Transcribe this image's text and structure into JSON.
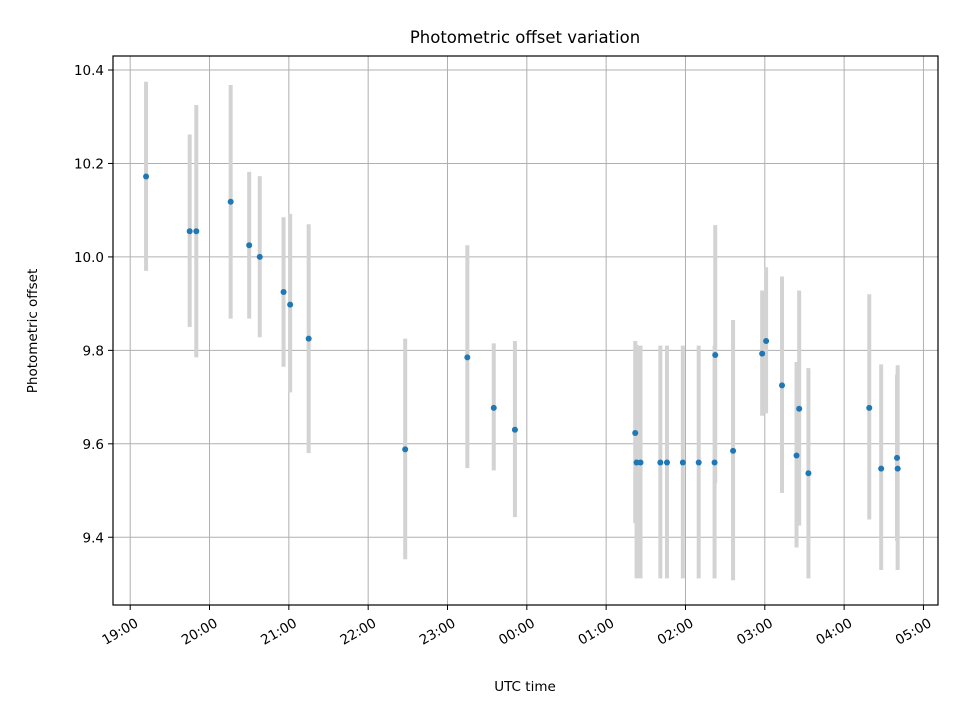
{
  "chart_data": {
    "type": "scatter",
    "title": "Photometric offset variation",
    "xlabel": "UTC time",
    "ylabel": "Photometric offset",
    "xlim": [
      "2000-01-01T18:47:00",
      "2000-01-02T05:11:00"
    ],
    "ylim": [
      9.255,
      10.43
    ],
    "grid": true,
    "marker_color": "#1f77b4",
    "errorbar_color": "#d3d3d3",
    "x_ticks": [
      {
        "t": "2000-01-01T19:00:00",
        "label": "19:00"
      },
      {
        "t": "2000-01-01T20:00:00",
        "label": "20:00"
      },
      {
        "t": "2000-01-01T21:00:00",
        "label": "21:00"
      },
      {
        "t": "2000-01-01T22:00:00",
        "label": "22:00"
      },
      {
        "t": "2000-01-01T23:00:00",
        "label": "23:00"
      },
      {
        "t": "2000-01-02T00:00:00",
        "label": "00:00"
      },
      {
        "t": "2000-01-02T01:00:00",
        "label": "01:00"
      },
      {
        "t": "2000-01-02T02:00:00",
        "label": "02:00"
      },
      {
        "t": "2000-01-02T03:00:00",
        "label": "03:00"
      },
      {
        "t": "2000-01-02T04:00:00",
        "label": "04:00"
      },
      {
        "t": "2000-01-02T05:00:00",
        "label": "05:00"
      }
    ],
    "y_ticks": [
      {
        "v": 9.4,
        "label": "9.4"
      },
      {
        "v": 9.6,
        "label": "9.6"
      },
      {
        "v": 9.8,
        "label": "9.8"
      },
      {
        "v": 10.0,
        "label": "10.0"
      },
      {
        "v": 10.2,
        "label": "10.2"
      },
      {
        "v": 10.4,
        "label": "10.4"
      }
    ],
    "points": [
      {
        "t": "2000-01-01T19:12:00",
        "y": 10.172,
        "lo": 9.97,
        "hi": 10.375
      },
      {
        "t": "2000-01-01T19:45:00",
        "y": 10.055,
        "lo": 9.85,
        "hi": 10.262
      },
      {
        "t": "2000-01-01T19:50:00",
        "y": 10.055,
        "lo": 9.785,
        "hi": 10.325
      },
      {
        "t": "2000-01-01T20:16:00",
        "y": 10.118,
        "lo": 9.868,
        "hi": 10.368
      },
      {
        "t": "2000-01-01T20:30:00",
        "y": 10.025,
        "lo": 9.868,
        "hi": 10.182
      },
      {
        "t": "2000-01-01T20:38:00",
        "y": 10.0,
        "lo": 9.828,
        "hi": 10.173
      },
      {
        "t": "2000-01-01T20:56:00",
        "y": 9.925,
        "lo": 9.765,
        "hi": 10.085
      },
      {
        "t": "2000-01-01T21:01:00",
        "y": 9.898,
        "lo": 9.71,
        "hi": 10.092
      },
      {
        "t": "2000-01-01T21:15:00",
        "y": 9.825,
        "lo": 9.58,
        "hi": 10.07
      },
      {
        "t": "2000-01-01T22:28:00",
        "y": 9.588,
        "lo": 9.353,
        "hi": 9.825
      },
      {
        "t": "2000-01-01T23:15:00",
        "y": 9.785,
        "lo": 9.548,
        "hi": 10.025
      },
      {
        "t": "2000-01-01T23:35:00",
        "y": 9.677,
        "lo": 9.543,
        "hi": 9.815
      },
      {
        "t": "2000-01-01T23:51:00",
        "y": 9.63,
        "lo": 9.443,
        "hi": 9.82
      },
      {
        "t": "2000-01-02T01:22:00",
        "y": 9.623,
        "lo": 9.43,
        "hi": 9.82
      },
      {
        "t": "2000-01-02T01:23:00",
        "y": 9.56,
        "lo": 9.312,
        "hi": 9.812
      },
      {
        "t": "2000-01-02T01:26:00",
        "y": 9.56,
        "lo": 9.312,
        "hi": 9.81
      },
      {
        "t": "2000-01-02T01:41:00",
        "y": 9.56,
        "lo": 9.312,
        "hi": 9.81
      },
      {
        "t": "2000-01-02T01:46:00",
        "y": 9.56,
        "lo": 9.312,
        "hi": 9.81
      },
      {
        "t": "2000-01-02T01:58:00",
        "y": 9.56,
        "lo": 9.312,
        "hi": 9.81
      },
      {
        "t": "2000-01-02T02:10:00",
        "y": 9.56,
        "lo": 9.312,
        "hi": 9.81
      },
      {
        "t": "2000-01-02T02:22:00",
        "y": 9.56,
        "lo": 9.312,
        "hi": 9.81
      },
      {
        "t": "2000-01-02T02:22:30",
        "y": 9.79,
        "lo": 9.515,
        "hi": 10.068
      },
      {
        "t": "2000-01-02T02:36:00",
        "y": 9.585,
        "lo": 9.308,
        "hi": 9.865
      },
      {
        "t": "2000-01-02T02:58:00",
        "y": 9.793,
        "lo": 9.66,
        "hi": 9.928
      },
      {
        "t": "2000-01-02T03:01:00",
        "y": 9.82,
        "lo": 9.665,
        "hi": 9.978
      },
      {
        "t": "2000-01-02T03:13:00",
        "y": 9.725,
        "lo": 9.495,
        "hi": 9.958
      },
      {
        "t": "2000-01-02T03:24:00",
        "y": 9.575,
        "lo": 9.378,
        "hi": 9.775
      },
      {
        "t": "2000-01-02T03:26:00",
        "y": 9.675,
        "lo": 9.425,
        "hi": 9.928
      },
      {
        "t": "2000-01-02T03:33:00",
        "y": 9.537,
        "lo": 9.312,
        "hi": 9.762
      },
      {
        "t": "2000-01-02T04:19:00",
        "y": 9.677,
        "lo": 9.438,
        "hi": 9.92
      },
      {
        "t": "2000-01-02T04:28:00",
        "y": 9.547,
        "lo": 9.33,
        "hi": 9.77
      },
      {
        "t": "2000-01-02T04:40:00",
        "y": 9.57,
        "lo": 9.392,
        "hi": 9.748
      },
      {
        "t": "2000-01-02T04:40:30",
        "y": 9.547,
        "lo": 9.33,
        "hi": 9.768
      }
    ]
  }
}
